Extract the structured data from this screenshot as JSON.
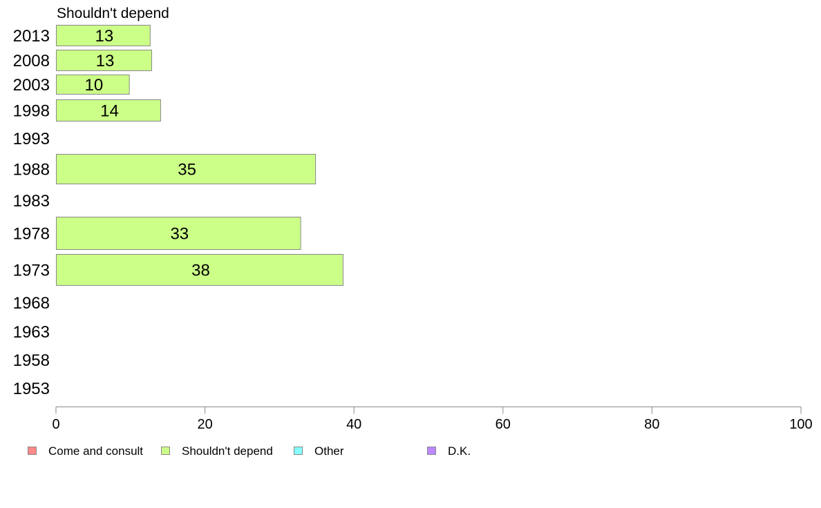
{
  "chart_data": {
    "type": "bar",
    "orientation": "horizontal",
    "title": "Shouldn't depend",
    "categories": [
      "2013",
      "2008",
      "2003",
      "1998",
      "1993",
      "1988",
      "1983",
      "1978",
      "1973",
      "1968",
      "1963",
      "1958",
      "1953"
    ],
    "series": [
      {
        "name": "Shouldn't depend",
        "color": "#ccff88",
        "values": [
          12.6,
          12.8,
          9.8,
          14.0,
          null,
          34.8,
          null,
          32.8,
          38.5,
          null,
          null,
          null,
          null
        ],
        "labels": [
          "13",
          "13",
          "10",
          "14",
          "",
          "35",
          "",
          "33",
          "38",
          "",
          "",
          "",
          ""
        ]
      }
    ],
    "xlim": [
      0,
      100
    ],
    "xticks": [
      "0",
      "20",
      "40",
      "60",
      "80",
      "100"
    ],
    "grid": false,
    "legend": {
      "placement": "bottom",
      "items": [
        {
          "label": "Come and consult",
          "color": "#ff8888"
        },
        {
          "label": "Shouldn't depend",
          "color": "#ccff88"
        },
        {
          "label": "Other",
          "color": "#88ffff"
        },
        {
          "label": "D.K.",
          "color": "#bb88ff"
        }
      ]
    }
  }
}
